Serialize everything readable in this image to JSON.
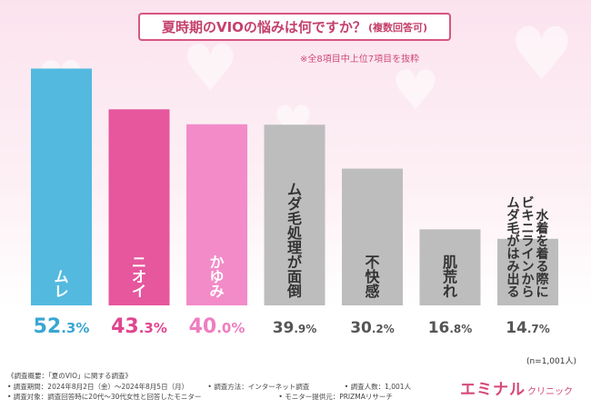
{
  "title": {
    "main": "夏時期のVIOの悩みは何ですか？",
    "sub": "(複数回答可)"
  },
  "note": "※全8項目中上位7項目を抜粋",
  "chart_data": {
    "type": "bar",
    "title": "夏時期のVIOの悩みは何ですか？(複数回答可)",
    "categories": [
      "ムレ",
      "ニオイ",
      "かゆみ",
      "ムダ毛処理が面倒",
      "不快感",
      "肌荒れ",
      "水着を着る際にビキニラインからムダ毛がはみ出る"
    ],
    "category_lines": [
      [
        "ムレ"
      ],
      [
        "ニオイ"
      ],
      [
        "かゆみ"
      ],
      [
        "ムダ毛処理が面倒"
      ],
      [
        "不快感"
      ],
      [
        "肌荒れ"
      ],
      [
        "水着を着る際に",
        "ビキニラインから",
        "ムダ毛がはみ出る"
      ]
    ],
    "values": [
      52.3,
      43.3,
      40.0,
      39.9,
      30.2,
      16.8,
      14.7
    ],
    "value_labels": [
      {
        "int": "52",
        "dec": ".3",
        "unit": "%"
      },
      {
        "int": "43",
        "dec": ".3",
        "unit": "%"
      },
      {
        "int": "40",
        "dec": ".0",
        "unit": "%"
      },
      {
        "int": "39",
        "dec": ".9",
        "unit": "%"
      },
      {
        "int": "30",
        "dec": ".2",
        "unit": "%"
      },
      {
        "int": "16",
        "dec": ".8",
        "unit": "%"
      },
      {
        "int": "14",
        "dec": ".7",
        "unit": "%"
      }
    ],
    "colors": [
      "#53b9df",
      "#e6579d",
      "#f28bc8",
      "#bdbdbd",
      "#bdbdbd",
      "#bdbdbd",
      "#bdbdbd"
    ],
    "value_colors": [
      "#3aa6d2",
      "#e0468f",
      "#ef7ec0",
      "#555555",
      "#555555",
      "#555555",
      "#555555"
    ],
    "label_colors": [
      "#ffffff",
      "#ffffff",
      "#ffffff",
      "#333333",
      "#333333",
      "#333333",
      "#333333"
    ],
    "ylim": [
      0,
      55
    ],
    "xlabel": "",
    "ylabel": "",
    "grid": false
  },
  "n_label": "(n=1,001人)",
  "footer": {
    "line1": "《調査概要：「夏のVIO」に関する調査》",
    "line2_a": "• 調査期間：2024年8月2日（金）〜2024年8月5日（月）",
    "line2_b": "• 調査方法：インターネット調査",
    "line2_c": "• 調査人数：1,001人",
    "line3_a": "• 調査対象：調査回答時に20代〜30代女性と回答したモニター",
    "line3_b": "• モニター提供元：PRIZMAリサーチ"
  },
  "brand": {
    "main": "エミナル",
    "sub": "クリニック"
  }
}
